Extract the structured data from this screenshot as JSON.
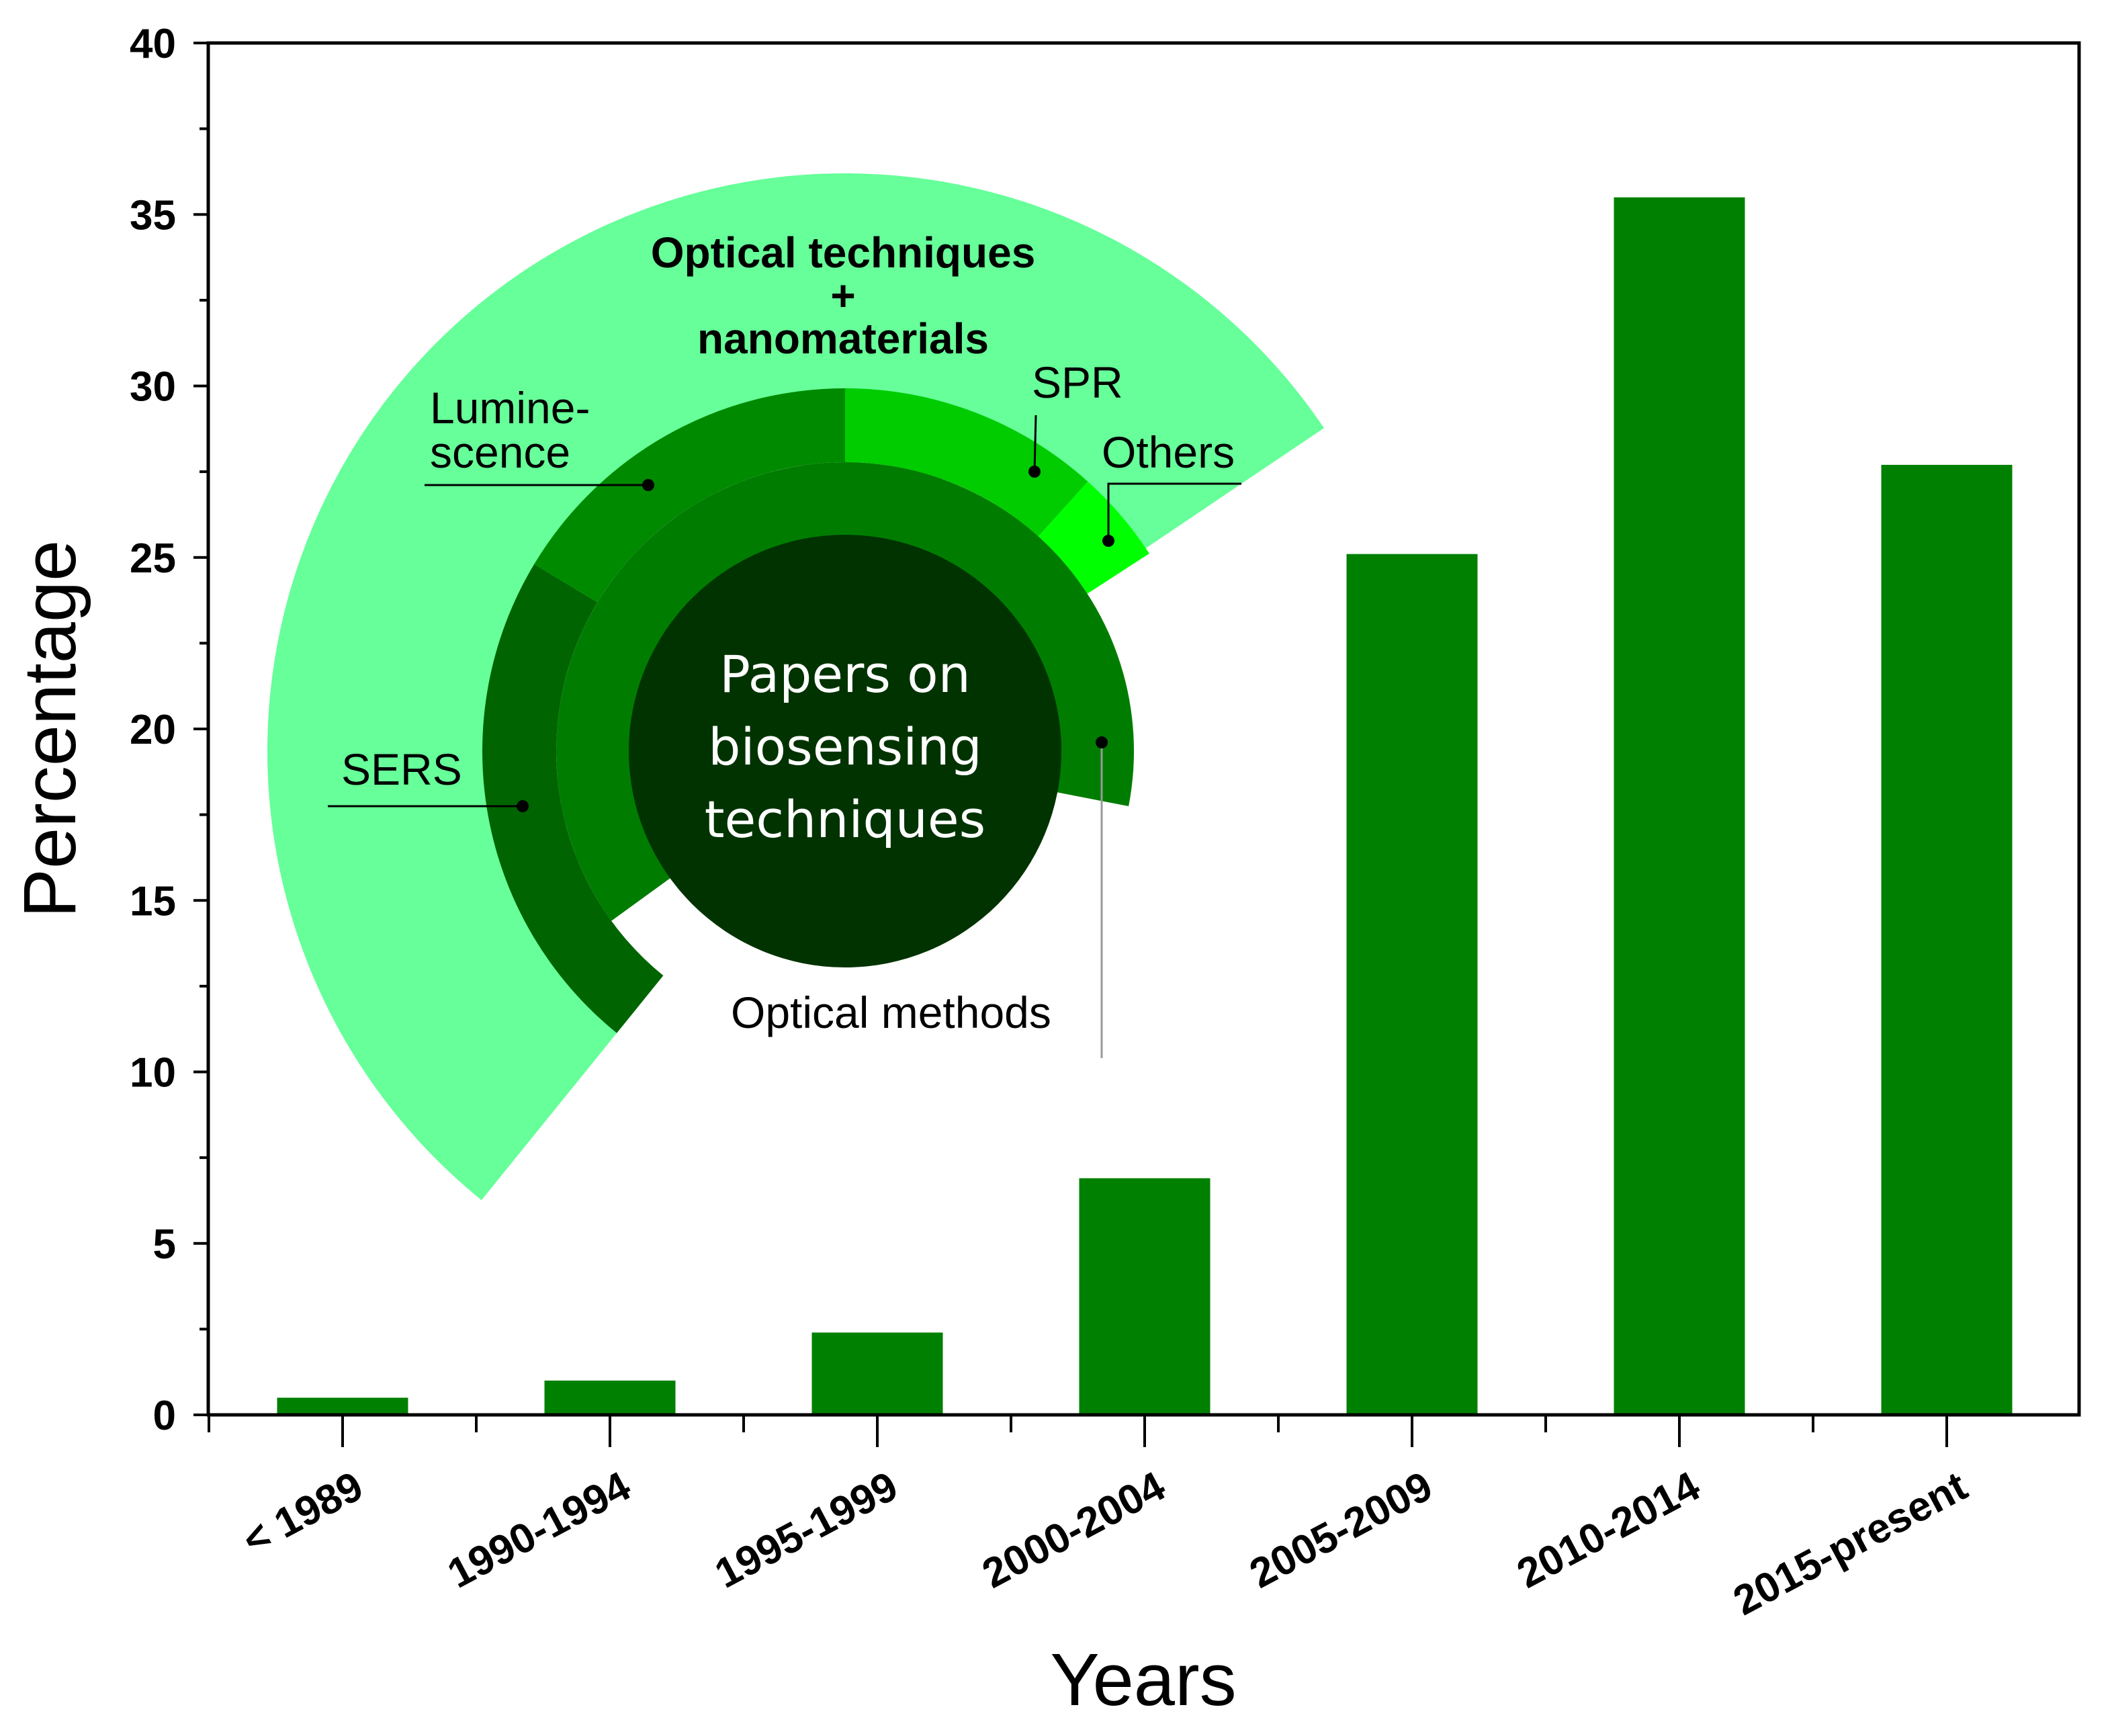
{
  "chart_data": {
    "type": "bar",
    "categories": [
      "< 1989",
      "1990-1994",
      "1995-1999",
      "2000-2004",
      "2005-2009",
      "2010-2014",
      "2015-present"
    ],
    "values": [
      0.5,
      1.0,
      2.4,
      6.9,
      25.1,
      35.5,
      27.7
    ],
    "xlabel": "Years",
    "ylabel": "Percentage",
    "ylim": [
      0,
      40
    ],
    "yticks": [
      0,
      5,
      10,
      15,
      20,
      25,
      30,
      35,
      40
    ],
    "bar_color": "#008000",
    "grid": false,
    "inset": {
      "type": "sunburst",
      "center_label": [
        "Papers on",
        "biosensing",
        "techniques"
      ],
      "center_color": "#003300",
      "ring1": {
        "label": "Optical methods",
        "color": "#007d00"
      },
      "ring2": [
        {
          "label": "SERS",
          "color": "#006400"
        },
        {
          "label": "Lumine-scence",
          "label_lines": [
            "Lumine-",
            "scence"
          ],
          "color": "#008a00"
        },
        {
          "label": "SPR",
          "color": "#00cc00"
        },
        {
          "label": "Others",
          "color": "#00ff00"
        }
      ],
      "outer_ring": {
        "label_lines": [
          "Optical techniques",
          "+",
          "nanomaterials"
        ],
        "color": "#66ff99"
      }
    }
  }
}
